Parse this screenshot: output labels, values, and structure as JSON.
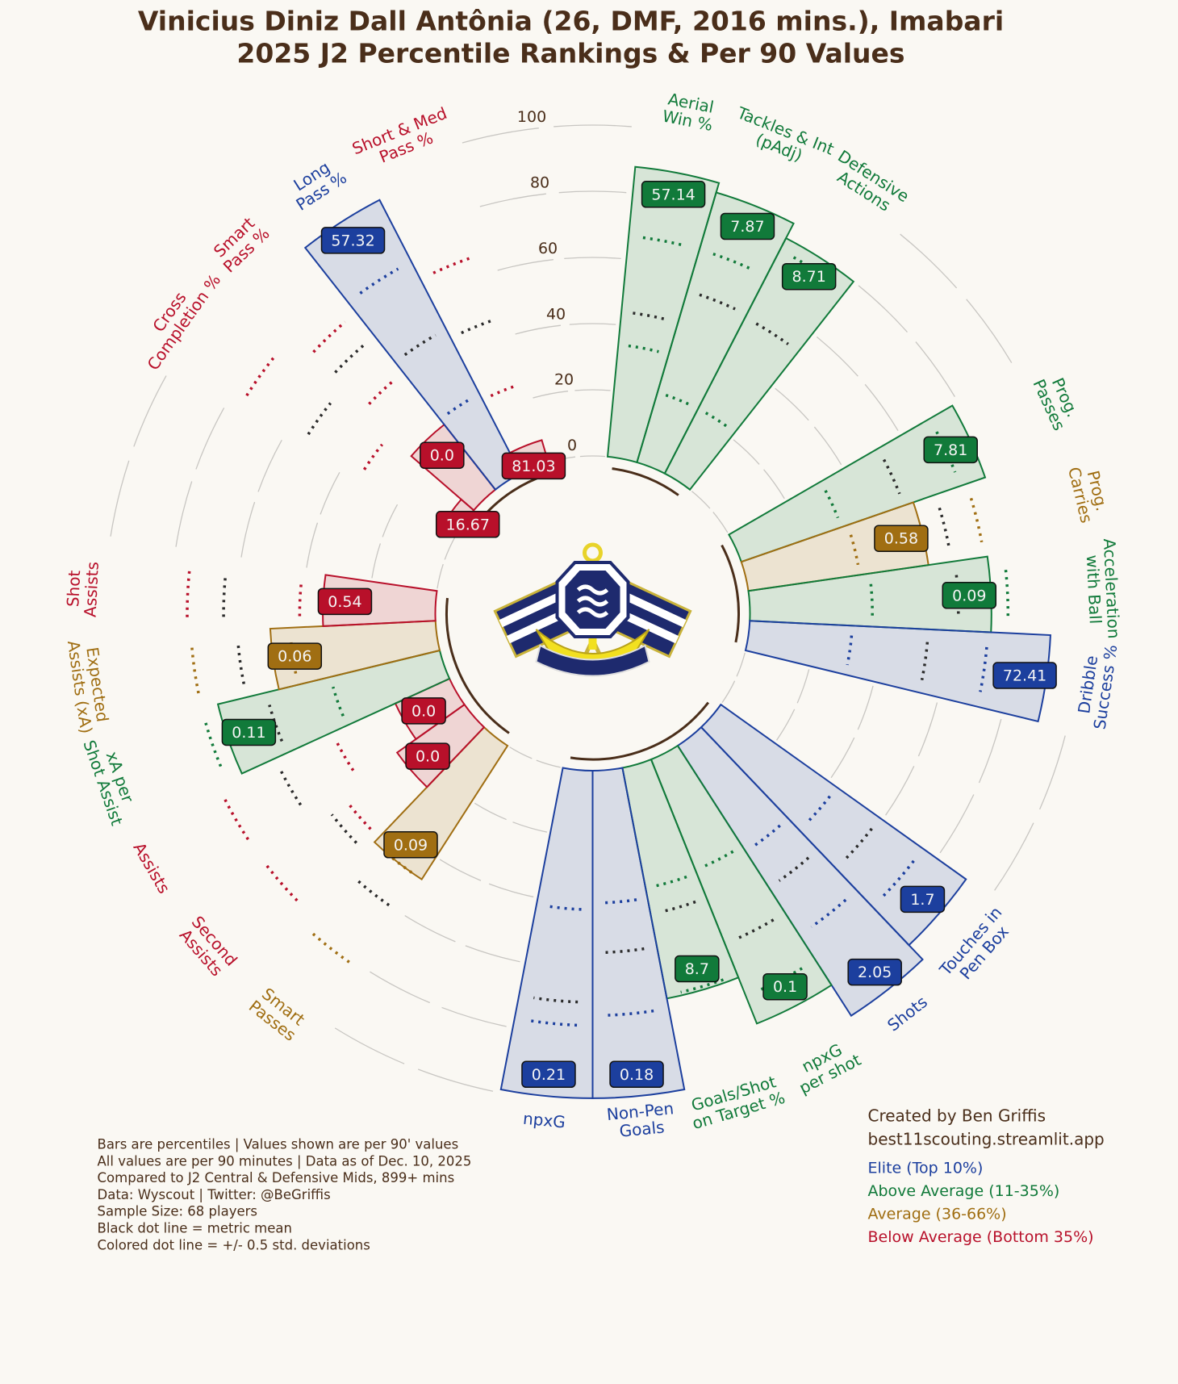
{
  "chart_data": {
    "type": "pizza",
    "title": [
      "Vinicius Diniz Dall Antônia (26, DMF, 2016 mins.), Imabari",
      "2025 J2 Percentile Rankings & Per 90 Values"
    ],
    "categories": [
      [
        "Aerial",
        "Win %"
      ],
      [
        "Tackles & Int",
        "(pAdj)"
      ],
      [
        "Defensive",
        "Actions"
      ],
      [
        "Prog.",
        "Passes"
      ],
      [
        "Prog.",
        "Carries"
      ],
      [
        "Acceleration",
        "with Ball"
      ],
      [
        "Dribble",
        "Success %"
      ],
      [
        "Touches in",
        "Pen Box"
      ],
      [
        "Shots"
      ],
      [
        "npxG",
        "per shot"
      ],
      [
        "Goals/Shot",
        "on Target %"
      ],
      [
        "Non-Pen",
        "Goals"
      ],
      [
        "npxG"
      ],
      [
        "Smart",
        "Passes"
      ],
      [
        "Second",
        "Assists"
      ],
      [
        "Assists"
      ],
      [
        "xA per",
        "Shot Assist"
      ],
      [
        "Expected",
        "Assists (xA)"
      ],
      [
        "Shot",
        "Assists"
      ],
      [
        "Cross",
        "Completion %"
      ],
      [
        "Smart",
        "Pass %"
      ],
      [
        "Long",
        "Pass %"
      ],
      [
        "Short & Med",
        "Pass %"
      ]
    ],
    "values": [
      88,
      85,
      80,
      78,
      55,
      73,
      91,
      91,
      97,
      86,
      71,
      99,
      99,
      48,
      25,
      18,
      69,
      50,
      34,
      5,
      25,
      93,
      7
    ],
    "per90": [
      57.14,
      7.87,
      8.71,
      7.81,
      0.58,
      0.09,
      72.41,
      1.7,
      2.05,
      0.1,
      8.7,
      0.18,
      0.21,
      0.09,
      {
        "value": 0,
        "label": "0.0"
      },
      {
        "value": 0,
        "label": "0.0"
      },
      0.11,
      0.06,
      0.54,
      16.67,
      {
        "value": 0,
        "label": "0.0"
      },
      57.32,
      81.03
    ],
    "mean_percentiles": [
      44,
      54,
      53,
      52,
      62,
      63,
      54,
      59,
      51,
      60,
      45,
      55,
      70,
      60,
      52,
      58,
      54,
      60,
      64,
      54,
      59,
      49,
      46
    ],
    "sd_low_percentiles": [
      34,
      22,
      22,
      32,
      34,
      37,
      31,
      43,
      38,
      36,
      37,
      40,
      42,
      48,
      46,
      39,
      34,
      44,
      41,
      34,
      45,
      27,
      25
    ],
    "sd_high_percentiles": [
      67,
      67,
      76,
      70,
      72,
      78,
      72,
      75,
      68,
      77,
      70,
      74,
      77,
      81,
      77,
      77,
      74,
      74,
      75,
      76,
      68,
      72,
      66
    ],
    "colors": [
      "#117a3a",
      "#117a3a",
      "#117a3a",
      "#117a3a",
      "#a06e12",
      "#117a3a",
      "#1c3f9e",
      "#1c3f9e",
      "#1c3f9e",
      "#117a3a",
      "#117a3a",
      "#1c3f9e",
      "#1c3f9e",
      "#a06e12",
      "#b8102a",
      "#b8102a",
      "#117a3a",
      "#a06e12",
      "#b8102a",
      "#b8102a",
      "#b8102a",
      "#1c3f9e",
      "#b8102a"
    ],
    "ylim": [
      0,
      100
    ],
    "yticks": [
      0,
      20,
      40,
      60,
      80,
      100
    ],
    "notes": [
      "Bars are percentiles | Values shown are per 90' values",
      "All values are per 90 minutes | Data as of Dec. 10, 2025",
      "Compared to J2 Central & Defensive Mids, 899+ mins",
      "Data: Wyscout | Twitter: @BeGriffis",
      "Sample Size: 68 players",
      "Black dot line = metric mean",
      "Colored dot line = +/- 0.5 std. deviations"
    ],
    "credits": [
      "Created by Ben Griffis",
      "best11scouting.streamlit.app"
    ],
    "legend": [
      {
        "label": "Elite (Top 10%)",
        "color": "#1c3f9e"
      },
      {
        "label": "Above Average (11-35%)",
        "color": "#117a3a"
      },
      {
        "label": "Average (36-66%)",
        "color": "#a06e12"
      },
      {
        "label": "Below Average (Bottom 35%)",
        "color": "#b8102a"
      }
    ]
  }
}
